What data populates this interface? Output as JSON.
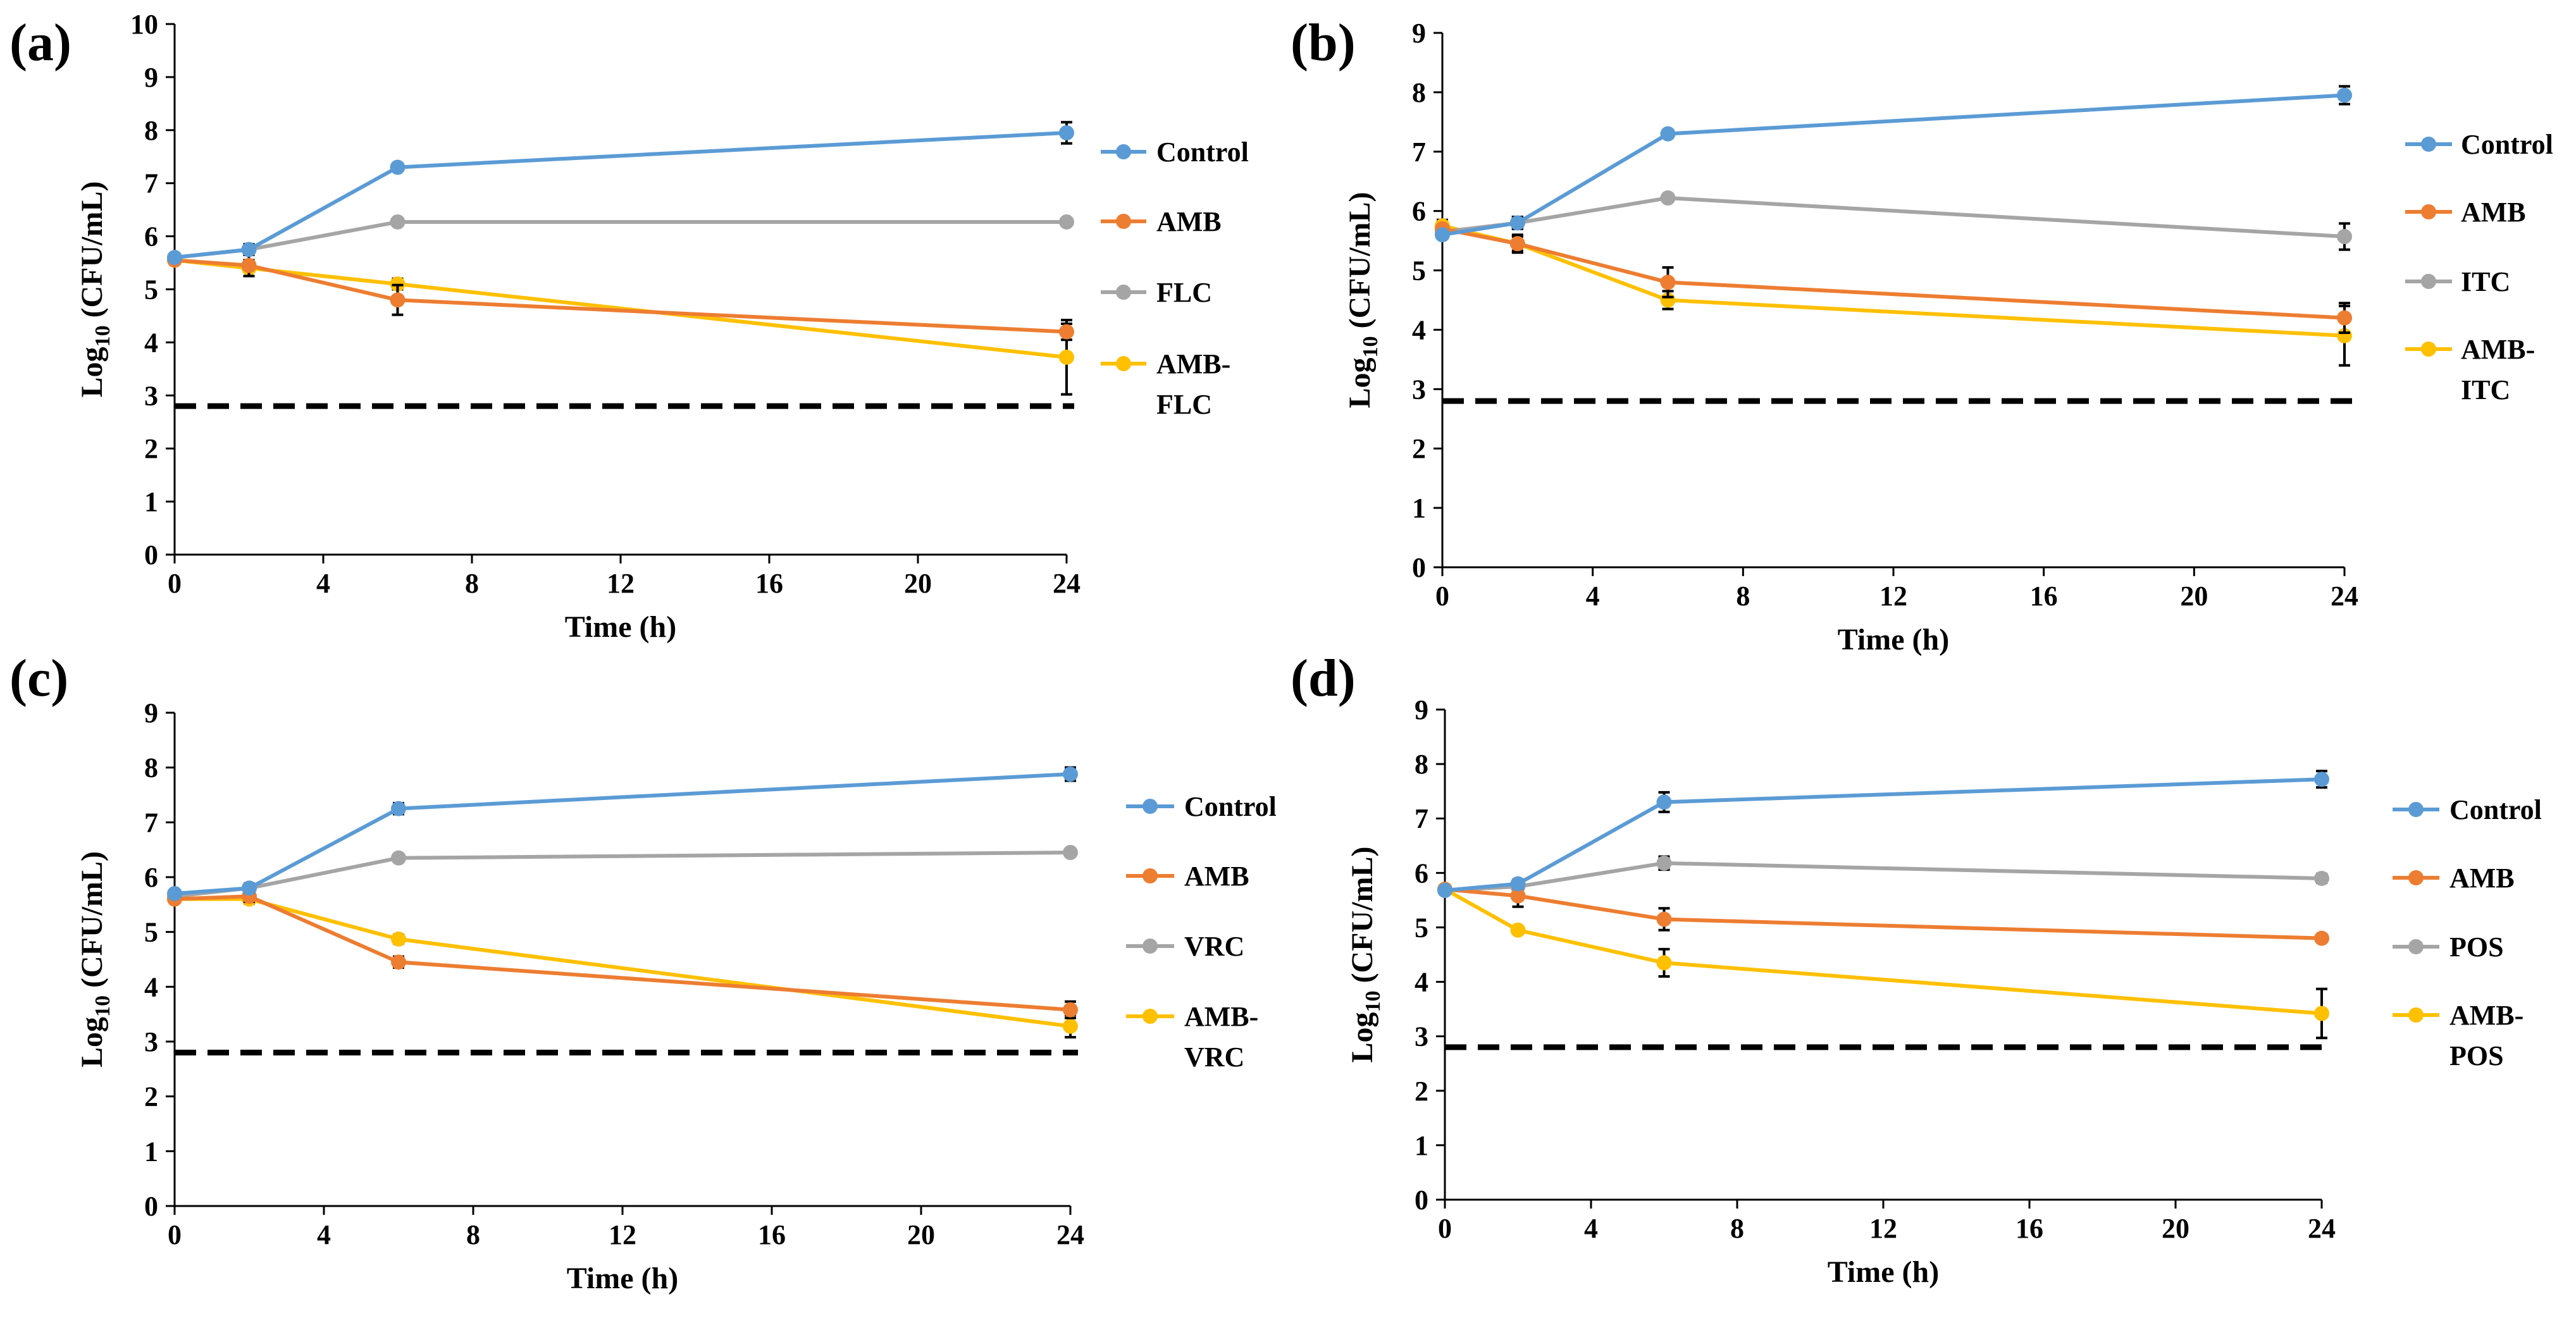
{
  "colors": {
    "Control": "#5B9BD5",
    "AMB": "#ED7D31",
    "azole": "#A5A5A5",
    "combo": "#FFC000",
    "axis": "#000000"
  },
  "chart_data": [
    {
      "type": "line",
      "panel_label": "(a)",
      "title": "",
      "xlabel": "Time (h)",
      "ylabel": "Log10 (CFU/mL)",
      "ylabel_parts": {
        "prefix": "Log",
        "subscript": "10",
        "suffix": " (CFU/mL)"
      },
      "xlim": [
        0,
        24
      ],
      "ylim": [
        0,
        10
      ],
      "xticks": [
        0,
        4,
        8,
        12,
        16,
        20,
        24
      ],
      "yticks": [
        0,
        1,
        2,
        3,
        4,
        5,
        6,
        7,
        8,
        9,
        10
      ],
      "grid": false,
      "legend_position": "right",
      "detection_limit": 2.8,
      "x": [
        0,
        2,
        6,
        24
      ],
      "series": [
        {
          "name": "Control",
          "legend_lines": [
            "Control"
          ],
          "color_key": "Control",
          "values": [
            5.6,
            5.75,
            7.3,
            7.95
          ],
          "error": [
            0.05,
            0.1,
            0.05,
            0.2
          ]
        },
        {
          "name": "AMB",
          "legend_lines": [
            "AMB"
          ],
          "color_key": "AMB",
          "values": [
            5.55,
            5.45,
            4.8,
            4.2
          ],
          "error": [
            0.05,
            0.2,
            0.28,
            0.15
          ]
        },
        {
          "name": "FLC",
          "legend_lines": [
            "FLC"
          ],
          "color_key": "azole",
          "values": [
            5.6,
            5.75,
            6.27,
            6.27
          ],
          "error": [
            0.05,
            0.08,
            0.05,
            0.05
          ]
        },
        {
          "name": "AMB-FLC",
          "legend_lines": [
            "AMB-",
            "FLC"
          ],
          "color_key": "combo",
          "values": [
            5.55,
            5.4,
            5.1,
            3.72
          ],
          "error": [
            0.05,
            0.15,
            0.1,
            0.7
          ]
        }
      ]
    },
    {
      "type": "line",
      "panel_label": "(b)",
      "title": "",
      "xlabel": "Time (h)",
      "ylabel": "Log10 (CFU/mL)",
      "ylabel_parts": {
        "prefix": "Log",
        "subscript": "10",
        "suffix": " (CFU/mL)"
      },
      "xlim": [
        0,
        24
      ],
      "ylim": [
        0,
        9
      ],
      "xticks": [
        0,
        4,
        8,
        12,
        16,
        20,
        24
      ],
      "yticks": [
        0,
        1,
        2,
        3,
        4,
        5,
        6,
        7,
        8,
        9
      ],
      "grid": false,
      "legend_position": "right",
      "detection_limit": 2.8,
      "x": [
        0,
        2,
        6,
        24
      ],
      "series": [
        {
          "name": "Control",
          "legend_lines": [
            "Control"
          ],
          "color_key": "Control",
          "values": [
            5.6,
            5.8,
            7.3,
            7.95
          ],
          "error": [
            0.05,
            0.1,
            0.05,
            0.15
          ]
        },
        {
          "name": "AMB",
          "legend_lines": [
            "AMB"
          ],
          "color_key": "AMB",
          "values": [
            5.7,
            5.45,
            4.8,
            4.2
          ],
          "error": [
            0.05,
            0.15,
            0.25,
            0.25
          ]
        },
        {
          "name": "ITC",
          "legend_lines": [
            "ITC"
          ],
          "color_key": "azole",
          "values": [
            5.65,
            5.8,
            6.22,
            5.57
          ],
          "error": [
            0.05,
            0.1,
            0.05,
            0.22
          ]
        },
        {
          "name": "AMB-ITC",
          "legend_lines": [
            "AMB-",
            "ITC"
          ],
          "color_key": "combo",
          "values": [
            5.75,
            5.45,
            4.5,
            3.9
          ],
          "error": [
            0.1,
            0.12,
            0.15,
            0.5
          ]
        }
      ]
    },
    {
      "type": "line",
      "panel_label": "(c)",
      "title": "",
      "xlabel": "Time (h)",
      "ylabel": "Log10 (CFU/mL)",
      "ylabel_parts": {
        "prefix": "Log",
        "subscript": "10",
        "suffix": " (CFU/mL)"
      },
      "xlim": [
        0,
        24
      ],
      "ylim": [
        0,
        9
      ],
      "xticks": [
        0,
        4,
        8,
        12,
        16,
        20,
        24
      ],
      "yticks": [
        0,
        1,
        2,
        3,
        4,
        5,
        6,
        7,
        8,
        9
      ],
      "grid": false,
      "legend_position": "right",
      "detection_limit": 2.8,
      "x": [
        0,
        2,
        6,
        24
      ],
      "series": [
        {
          "name": "Control",
          "legend_lines": [
            "Control"
          ],
          "color_key": "Control",
          "values": [
            5.7,
            5.8,
            7.25,
            7.88
          ],
          "error": [
            0.05,
            0.08,
            0.1,
            0.12
          ]
        },
        {
          "name": "AMB",
          "legend_lines": [
            "AMB"
          ],
          "color_key": "AMB",
          "values": [
            5.6,
            5.65,
            4.45,
            3.58
          ],
          "error": [
            0.05,
            0.1,
            0.1,
            0.15
          ]
        },
        {
          "name": "VRC",
          "legend_lines": [
            "VRC"
          ],
          "color_key": "azole",
          "values": [
            5.65,
            5.8,
            6.35,
            6.45
          ],
          "error": [
            0.05,
            0.08,
            0.05,
            0.05
          ]
        },
        {
          "name": "AMB-VRC",
          "legend_lines": [
            "AMB-",
            "VRC"
          ],
          "color_key": "combo",
          "values": [
            5.6,
            5.6,
            4.87,
            3.28
          ],
          "error": [
            0.05,
            0.08,
            0.08,
            0.2
          ]
        }
      ]
    },
    {
      "type": "line",
      "panel_label": "(d)",
      "title": "",
      "xlabel": "Time (h)",
      "ylabel": "Log10 (CFU/mL)",
      "ylabel_parts": {
        "prefix": "Log",
        "subscript": "10",
        "suffix": " (CFU/mL)"
      },
      "xlim": [
        0,
        24
      ],
      "ylim": [
        0,
        9
      ],
      "xticks": [
        0,
        4,
        8,
        12,
        16,
        20,
        24
      ],
      "yticks": [
        0,
        1,
        2,
        3,
        4,
        5,
        6,
        7,
        8,
        9
      ],
      "grid": false,
      "legend_position": "right",
      "detection_limit": 2.8,
      "x": [
        0,
        2,
        6,
        24
      ],
      "series": [
        {
          "name": "Control",
          "legend_lines": [
            "Control"
          ],
          "color_key": "Control",
          "values": [
            5.68,
            5.8,
            7.3,
            7.72
          ],
          "error": [
            0.05,
            0.08,
            0.18,
            0.15
          ]
        },
        {
          "name": "AMB",
          "legend_lines": [
            "AMB"
          ],
          "color_key": "AMB",
          "values": [
            5.7,
            5.58,
            5.15,
            4.8
          ],
          "error": [
            0.05,
            0.2,
            0.2,
            0.05
          ]
        },
        {
          "name": "POS",
          "legend_lines": [
            "POS"
          ],
          "color_key": "azole",
          "values": [
            5.68,
            5.75,
            6.18,
            5.9
          ],
          "error": [
            0.05,
            0.08,
            0.12,
            0.08
          ]
        },
        {
          "name": "AMB-POS",
          "legend_lines": [
            "AMB-",
            "POS"
          ],
          "color_key": "combo",
          "values": [
            5.7,
            4.95,
            4.35,
            3.42
          ],
          "error": [
            0.05,
            0.05,
            0.25,
            0.45
          ]
        }
      ]
    }
  ]
}
